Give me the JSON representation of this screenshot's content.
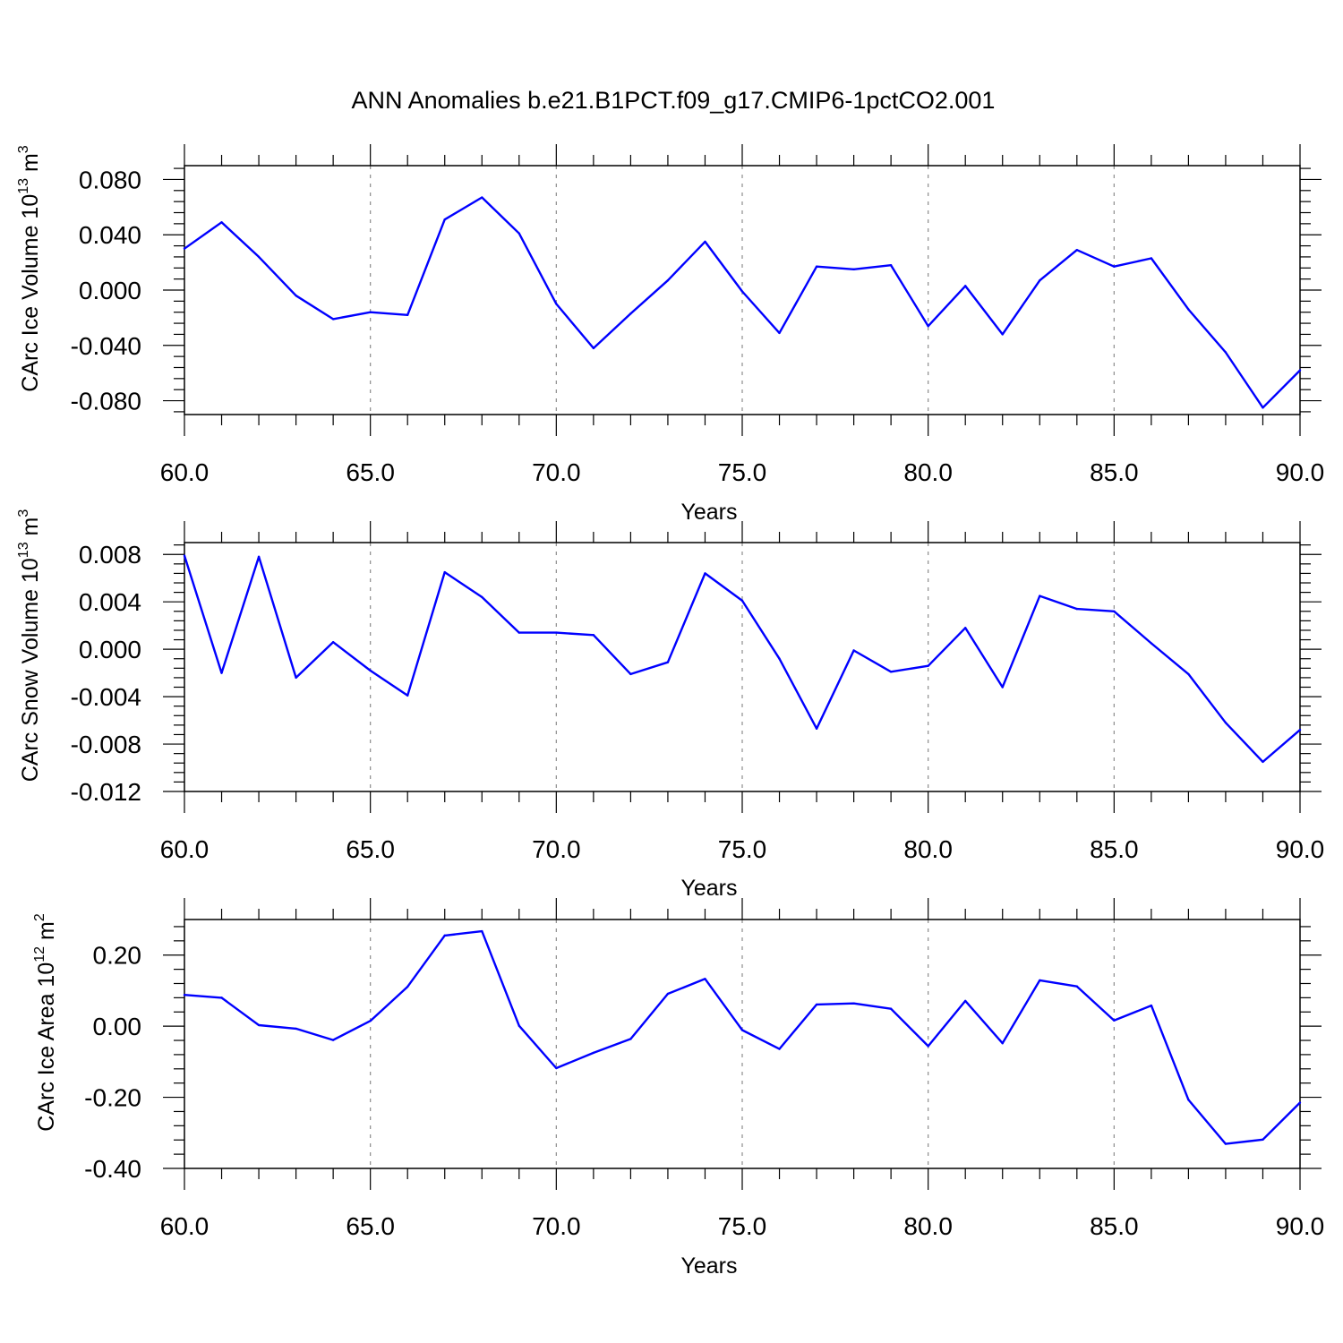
{
  "title": "ANN Anomalies b.e21.B1PCT.f09_g17.CMIP6-1pctCO2.001",
  "colors": {
    "series": "#0000ff",
    "axes": "#000000",
    "grid": "#8c8c8c"
  },
  "chart_data": [
    {
      "type": "line",
      "ylabel": {
        "text": "CArc Ice Volume 10",
        "sup": "13",
        "unit": " m",
        "unit_sup": "3"
      },
      "xlabel": "Years",
      "xlim": [
        60,
        90
      ],
      "ylim": [
        -0.09,
        0.09
      ],
      "xticks": [
        60,
        65,
        70,
        75,
        80,
        85,
        90
      ],
      "xtick_labels": [
        "60.0",
        "65.0",
        "70.0",
        "75.0",
        "80.0",
        "85.0",
        "90.0"
      ],
      "yticks": [
        0.08,
        0.04,
        0.0,
        -0.04,
        -0.08
      ],
      "ytick_labels": [
        "0.080",
        "0.040",
        "0.000",
        "-0.040",
        "-0.080"
      ],
      "grid": "vertical dashed at major x ticks",
      "x": [
        60,
        61,
        62,
        63,
        64,
        65,
        66,
        67,
        68,
        69,
        70,
        71,
        72,
        73,
        74,
        75,
        76,
        77,
        78,
        79,
        80,
        81,
        82,
        83,
        84,
        85,
        86,
        87,
        88,
        89,
        90
      ],
      "values": [
        0.03,
        0.049,
        0.024,
        -0.004,
        -0.021,
        -0.016,
        -0.018,
        0.051,
        0.067,
        0.041,
        -0.01,
        -0.042,
        -0.017,
        0.007,
        0.035,
        -0.001,
        -0.031,
        0.017,
        0.015,
        0.018,
        -0.026,
        0.003,
        -0.032,
        0.007,
        0.029,
        0.017,
        0.023,
        -0.014,
        -0.045,
        -0.085,
        -0.058
      ]
    },
    {
      "type": "line",
      "ylabel": {
        "text": "CArc Snow Volume 10",
        "sup": "13",
        "unit": " m",
        "unit_sup": "3"
      },
      "xlabel": "Years",
      "xlim": [
        60,
        90
      ],
      "ylim": [
        -0.012,
        0.009
      ],
      "xticks": [
        60,
        65,
        70,
        75,
        80,
        85,
        90
      ],
      "xtick_labels": [
        "60.0",
        "65.0",
        "70.0",
        "75.0",
        "80.0",
        "85.0",
        "90.0"
      ],
      "yticks": [
        0.008,
        0.004,
        0.0,
        -0.004,
        -0.008,
        -0.012
      ],
      "ytick_labels": [
        "0.008",
        "0.004",
        "0.000",
        "-0.004",
        "-0.008",
        "-0.012"
      ],
      "grid": "vertical dashed at major x ticks",
      "x": [
        60,
        61,
        62,
        63,
        64,
        65,
        66,
        67,
        68,
        69,
        70,
        71,
        72,
        73,
        74,
        75,
        76,
        77,
        78,
        79,
        80,
        81,
        82,
        83,
        84,
        85,
        86,
        87,
        88,
        89,
        90
      ],
      "values": [
        0.0079,
        -0.002,
        0.0078,
        -0.0024,
        0.0006,
        -0.0018,
        -0.0039,
        0.0065,
        0.0044,
        0.0014,
        0.0014,
        0.0012,
        -0.0021,
        -0.0011,
        0.0064,
        0.0041,
        -0.0008,
        -0.0067,
        -0.0001,
        -0.0019,
        -0.0014,
        0.0018,
        -0.0032,
        0.0045,
        0.0034,
        0.0032,
        0.0005,
        -0.0021,
        -0.0062,
        -0.0095,
        -0.0068
      ]
    },
    {
      "type": "line",
      "ylabel": {
        "text": "CArc Ice Area 10",
        "sup": "12",
        "unit": " m",
        "unit_sup": "2"
      },
      "xlabel": "Years",
      "xlim": [
        60,
        90
      ],
      "ylim": [
        -0.4,
        0.3
      ],
      "xticks": [
        60,
        65,
        70,
        75,
        80,
        85,
        90
      ],
      "xtick_labels": [
        "60.0",
        "65.0",
        "70.0",
        "75.0",
        "80.0",
        "85.0",
        "90.0"
      ],
      "yticks": [
        0.2,
        0.0,
        -0.2,
        -0.4
      ],
      "ytick_labels": [
        "0.20",
        "0.00",
        "-0.20",
        "-0.40"
      ],
      "grid": "vertical dashed at major x ticks",
      "x": [
        60,
        61,
        62,
        63,
        64,
        65,
        66,
        67,
        68,
        69,
        70,
        71,
        72,
        73,
        74,
        75,
        76,
        77,
        78,
        79,
        80,
        81,
        82,
        83,
        84,
        85,
        86,
        87,
        88,
        89,
        90
      ],
      "values": [
        0.088,
        0.08,
        0.003,
        -0.007,
        -0.039,
        0.015,
        0.111,
        0.255,
        0.267,
        0.001,
        -0.118,
        -0.075,
        -0.036,
        0.091,
        0.133,
        -0.011,
        -0.064,
        0.061,
        0.064,
        0.049,
        -0.056,
        0.071,
        -0.048,
        0.129,
        0.112,
        0.016,
        0.058,
        -0.207,
        -0.331,
        -0.319,
        -0.215
      ]
    }
  ]
}
